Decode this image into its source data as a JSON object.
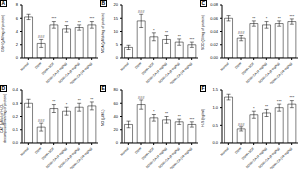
{
  "chart_data": [
    {
      "type": "bar",
      "title": "A",
      "y_label": "GSH (μM/mg of protein)",
      "categories": [
        "Normal",
        "DDW",
        "DDW+SCE",
        "DDW+CA (4 mg/kg)",
        "DDW+CA (8 mg/kg)",
        "DDW+CA (16 mg/kg)"
      ],
      "values": [
        6.2,
        2.2,
        5.0,
        4.4,
        4.6,
        5.0
      ],
      "errors": [
        0.4,
        0.6,
        0.5,
        0.5,
        0.4,
        0.5
      ],
      "annotations": [
        null,
        "###",
        "***",
        "**",
        "**",
        "***"
      ],
      "color": "#ffffff",
      "ylim": [
        0,
        8
      ],
      "yticks": [
        0,
        2,
        4,
        6,
        8
      ]
    },
    {
      "type": "bar",
      "title": "B",
      "y_label": "MDA (μMol/mg of protein)",
      "categories": [
        "Normal",
        "DDW",
        "DDW+SCE",
        "DDW+CA (4 mg/kg)",
        "DDW+CA (8 mg/kg)",
        "DDW+CA (16 mg/kg)"
      ],
      "values": [
        4,
        14,
        8,
        7,
        6,
        5
      ],
      "errors": [
        0.8,
        2.5,
        1.5,
        1.5,
        1.2,
        1.0
      ],
      "annotations": [
        null,
        "###",
        "*",
        "**",
        "**",
        "***"
      ],
      "color": "#ffffff",
      "ylim": [
        0,
        20
      ],
      "yticks": [
        0,
        5,
        10,
        15,
        20
      ]
    },
    {
      "type": "bar",
      "title": "C",
      "y_label": "SOD (U/mg of protein)",
      "categories": [
        "Normal",
        "DDW",
        "DDW+SCE",
        "DDW+CA (4 mg/kg)",
        "DDW+CA (8 mg/kg)",
        "DDW+CA (16 mg/kg)"
      ],
      "values": [
        0.06,
        0.03,
        0.052,
        0.05,
        0.052,
        0.055
      ],
      "errors": [
        0.004,
        0.004,
        0.004,
        0.005,
        0.004,
        0.004
      ],
      "annotations": [
        null,
        "###",
        "**",
        "*",
        "**",
        "***"
      ],
      "color": "#ffffff",
      "ylim": [
        0,
        0.08
      ],
      "yticks": [
        {
          "value": 0,
          "label": "0.00"
        },
        {
          "value": 0.02,
          "label": "0.02"
        },
        {
          "value": 0.04,
          "label": "0.04"
        },
        {
          "value": 0.06,
          "label": "0.06"
        },
        {
          "value": 0.08,
          "label": "0.08"
        }
      ]
    },
    {
      "type": "bar",
      "title": "D",
      "y_label": "CAT (μMol of H₂O₂ decomposed/min/mg of protein)",
      "categories": [
        "Normal",
        "DDW",
        "DDW+SCE",
        "DDW+CA (4 mg/kg)",
        "DDW+CA (8 mg/kg)",
        "DDW+CA (16 mg/kg)"
      ],
      "values": [
        0.3,
        0.12,
        0.26,
        0.24,
        0.27,
        0.28
      ],
      "errors": [
        0.03,
        0.03,
        0.03,
        0.03,
        0.03,
        0.03
      ],
      "annotations": [
        null,
        "###",
        "**",
        "*",
        "**",
        "**"
      ],
      "color": "#ffffff",
      "ylim": [
        0,
        0.4
      ],
      "yticks": [
        {
          "value": 0,
          "label": "0.0"
        },
        0.1,
        0.2,
        0.3,
        0.4
      ]
    },
    {
      "type": "bar",
      "title": "E",
      "y_label": "NO (μM/L)",
      "categories": [
        "Normal",
        "DDW",
        "DDW+SCE",
        "DDW+CA (4 mg/kg)",
        "DDW+CA (8 mg/kg)",
        "DDW+CA (16 mg/kg)"
      ],
      "values": [
        28,
        58,
        38,
        35,
        32,
        28
      ],
      "errors": [
        5,
        7,
        5,
        5,
        4,
        4
      ],
      "annotations": [
        null,
        "###",
        "*",
        "**",
        "**",
        "***"
      ],
      "color": "#ffffff",
      "ylim": [
        0,
        80
      ],
      "yticks": [
        0,
        20,
        40,
        60,
        80
      ]
    },
    {
      "type": "bar",
      "title": "F",
      "y_label": "H₂S (ng/ml)",
      "categories": [
        "Normal",
        "DDW",
        "DDW+SCE",
        "DDW+CA (4 mg/kg)",
        "DDW+CA (8 mg/kg)",
        "DDW+CA (16 mg/kg)"
      ],
      "values": [
        1.3,
        0.4,
        0.8,
        0.85,
        1.0,
        1.1
      ],
      "errors": [
        0.08,
        0.06,
        0.1,
        0.1,
        0.1,
        0.1
      ],
      "annotations": [
        null,
        "###",
        "*",
        "**",
        "***",
        "***"
      ],
      "color": "#ffffff",
      "ylim": [
        0,
        1.5
      ],
      "yticks": [
        {
          "value": 0,
          "label": "0.0"
        },
        0.5,
        {
          "value": 1,
          "label": "1.0"
        },
        1.5
      ]
    }
  ]
}
